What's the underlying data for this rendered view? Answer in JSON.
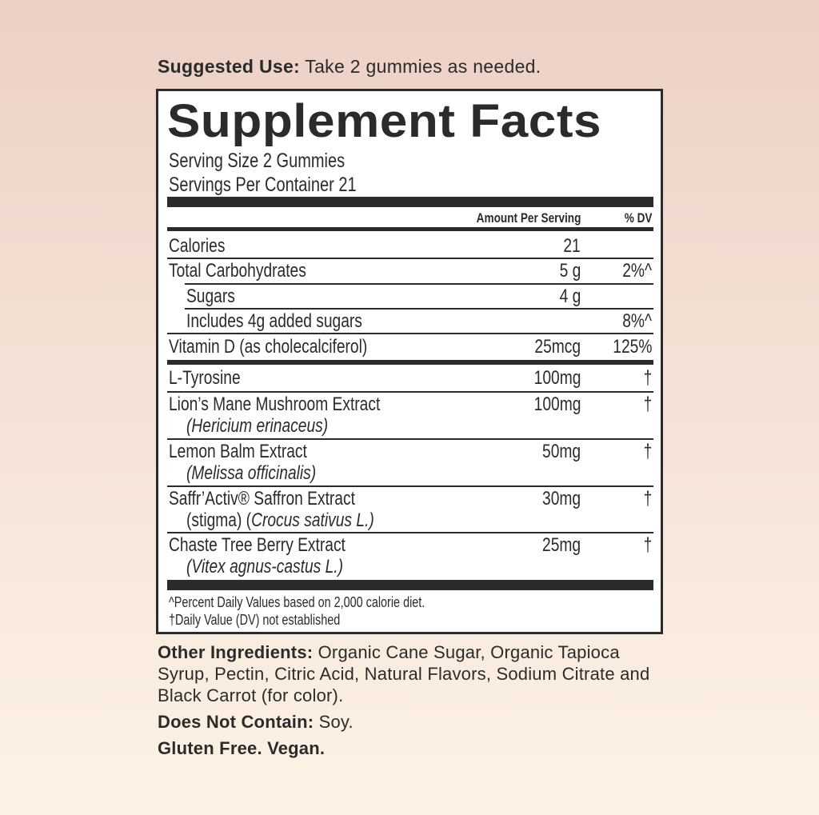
{
  "suggested_use": {
    "label": "Suggested Use:",
    "text": " Take 2 gummies as needed."
  },
  "facts": {
    "title": "Supplement Facts",
    "serving_size": "Serving Size 2 Gummies",
    "servings_per_container": "Servings Per Container 21",
    "header_amount": "Amount Per Serving",
    "header_dv": "% DV",
    "rows": [
      {
        "name": "Calories",
        "amount": "21",
        "dv": ""
      },
      {
        "name": "Total Carbohydrates",
        "amount": "5 g",
        "dv": "2%^"
      },
      {
        "name": "Sugars",
        "amount": "4 g",
        "dv": ""
      },
      {
        "name": "Includes 4g added sugars",
        "amount": "",
        "dv": "8%^"
      },
      {
        "name": "Vitamin D (as cholecalciferol)",
        "amount": "25mcg",
        "dv": "125%"
      },
      {
        "name": "L-Tyrosine",
        "amount": "100mg",
        "dv": "†"
      },
      {
        "name": "Lion’s Mane Mushroom Extract",
        "sub": "(Hericium erinaceus)",
        "amount": "100mg",
        "dv": "†"
      },
      {
        "name": "Lemon Balm Extract",
        "sub": "(Melissa officinalis)",
        "amount": "50mg",
        "dv": "†"
      },
      {
        "name": "Saffr’Activ® Saffron Extract",
        "sub_prefix": "(stigma) (",
        "sub": "Crocus sativus L.)",
        "amount": "30mg",
        "dv": "†"
      },
      {
        "name": "Chaste Tree Berry Extract",
        "sub": "(Vitex agnus-castus L.)",
        "amount": "25mg",
        "dv": "†"
      }
    ],
    "footnotes": [
      "^Percent Daily Values based on 2,000 calorie diet.",
      "†Daily Value (DV) not established"
    ]
  },
  "other_ingredients": {
    "label": "Other Ingredients:",
    "text": " Organic Cane Sugar, Organic Tapioca Syrup, Pectin, Citric Acid, Natural Flavors, Sodium Citrate and Black Carrot (for color)."
  },
  "does_not_contain": {
    "label": "Does Not Contain:",
    "text": " Soy."
  },
  "claims": "Gluten Free. Vegan."
}
